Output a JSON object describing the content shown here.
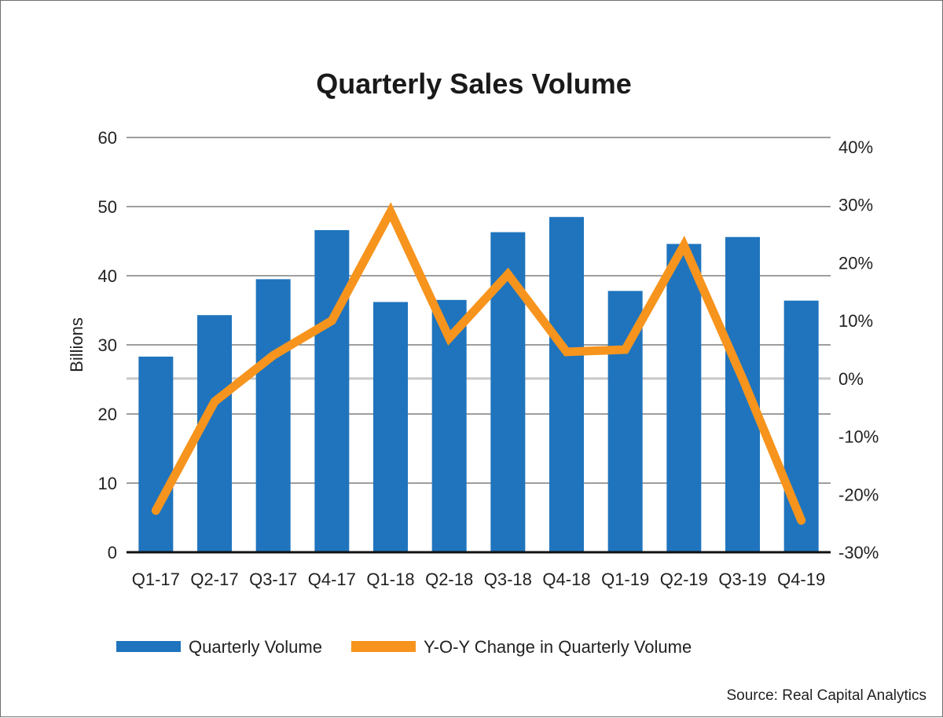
{
  "chart_data": {
    "type": "bar",
    "title": "Quarterly Sales Volume",
    "ylabel": "Billions",
    "ylim": [
      0,
      60
    ],
    "y_ticks": [
      "0",
      "10",
      "20",
      "30",
      "40",
      "50",
      "60"
    ],
    "y2lim": [
      -30,
      40
    ],
    "y2_ticks": [
      "-30%",
      "-20%",
      "-10%",
      "0%",
      "10%",
      "20%",
      "30%",
      "40%"
    ],
    "categories": [
      "Q1-17",
      "Q2-17",
      "Q3-17",
      "Q4-17",
      "Q1-18",
      "Q2-18",
      "Q3-18",
      "Q4-18",
      "Q1-19",
      "Q2-19",
      "Q3-19",
      "Q4-19"
    ],
    "series": [
      {
        "name": "Quarterly Volume",
        "type": "bar",
        "axis": "left",
        "color": "#1f74bd",
        "values": [
          28.3,
          34.3,
          39.5,
          46.6,
          36.2,
          36.5,
          46.3,
          48.5,
          37.8,
          44.6,
          45.6,
          36.4
        ]
      },
      {
        "name": "Y-O-Y Change in Quarterly Volume",
        "type": "line",
        "axis": "right",
        "color": "#f7941d",
        "values": [
          -22.8,
          -4.0,
          4.0,
          10.0,
          28.8,
          7.0,
          18.0,
          4.6,
          5.0,
          23.0,
          0.0,
          -24.5
        ]
      }
    ],
    "grid": true,
    "zero_line_right_axis": "#c8c8c8",
    "legend_position": "bottom",
    "source": "Source: Real Capital Analytics"
  }
}
